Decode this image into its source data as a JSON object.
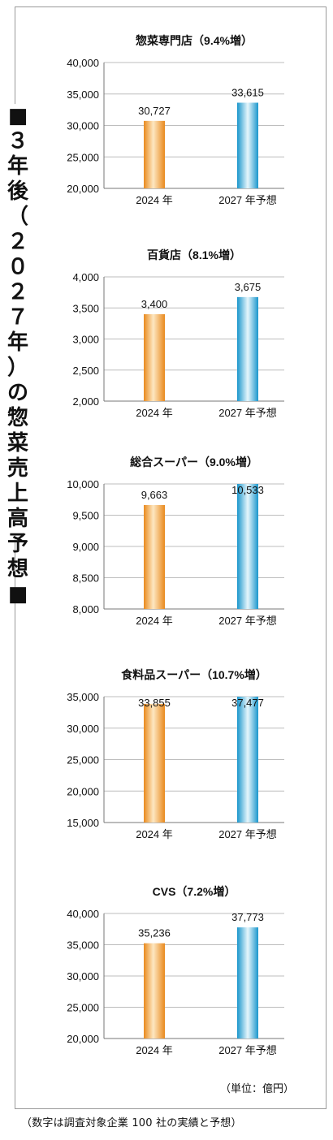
{
  "side_title": "■３年後（２０２７年）の惣菜売上高予想■",
  "unit": "（単位：億円）",
  "source": "（数字は調査対象企業 100 社の実績と予想）",
  "colors": {
    "bar_2024": "#f0a03c",
    "bar_2027": "#3ab2dc"
  },
  "chart_data": [
    {
      "type": "bar",
      "title": "惣菜専門店（9.4%増）",
      "categories": [
        "2024 年",
        "2027 年予想"
      ],
      "values": [
        30727,
        33615
      ],
      "value_labels": [
        "30,727",
        "33,615"
      ],
      "ylim": [
        20000,
        40000
      ],
      "ticks": [
        "20,000",
        "25,000",
        "30,000",
        "35,000",
        "40,000"
      ],
      "tick_values": [
        20000,
        25000,
        30000,
        35000,
        40000
      ],
      "grid": true
    },
    {
      "type": "bar",
      "title": "百貨店（8.1%増）",
      "categories": [
        "2024 年",
        "2027 年予想"
      ],
      "values": [
        3400,
        3675
      ],
      "value_labels": [
        "3,400",
        "3,675"
      ],
      "ylim": [
        2000,
        4000
      ],
      "ticks": [
        "2,000",
        "2,500",
        "3,000",
        "3,500",
        "4,000"
      ],
      "tick_values": [
        2000,
        2500,
        3000,
        3500,
        4000
      ],
      "grid": true
    },
    {
      "type": "bar",
      "title": "総合スーパー（9.0%増）",
      "categories": [
        "2024 年",
        "2027 年予想"
      ],
      "values": [
        9663,
        10533
      ],
      "value_labels": [
        "9,663",
        "10,533"
      ],
      "ylim": [
        8000,
        10000
      ],
      "ticks": [
        "8,000",
        "8,500",
        "9,000",
        "9,500",
        "10,000"
      ],
      "tick_values": [
        8000,
        8500,
        9000,
        9500,
        10000
      ],
      "grid": true
    },
    {
      "type": "bar",
      "title": "食料品スーパー（10.7%増）",
      "categories": [
        "2024 年",
        "2027 年予想"
      ],
      "values": [
        33855,
        37477
      ],
      "value_labels": [
        "33,855",
        "37,477"
      ],
      "ylim": [
        15000,
        35000
      ],
      "ticks": [
        "15,000",
        "20,000",
        "25,000",
        "30,000",
        "35,000"
      ],
      "tick_values": [
        15000,
        20000,
        25000,
        30000,
        35000
      ],
      "grid": true
    },
    {
      "type": "bar",
      "title": "CVS（7.2%増）",
      "categories": [
        "2024 年",
        "2027 年予想"
      ],
      "values": [
        35236,
        37773
      ],
      "value_labels": [
        "35,236",
        "37,773"
      ],
      "ylim": [
        20000,
        40000
      ],
      "ticks": [
        "20,000",
        "25,000",
        "30,000",
        "35,000",
        "40,000"
      ],
      "tick_values": [
        20000,
        25000,
        30000,
        35000,
        40000
      ],
      "grid": true
    }
  ]
}
